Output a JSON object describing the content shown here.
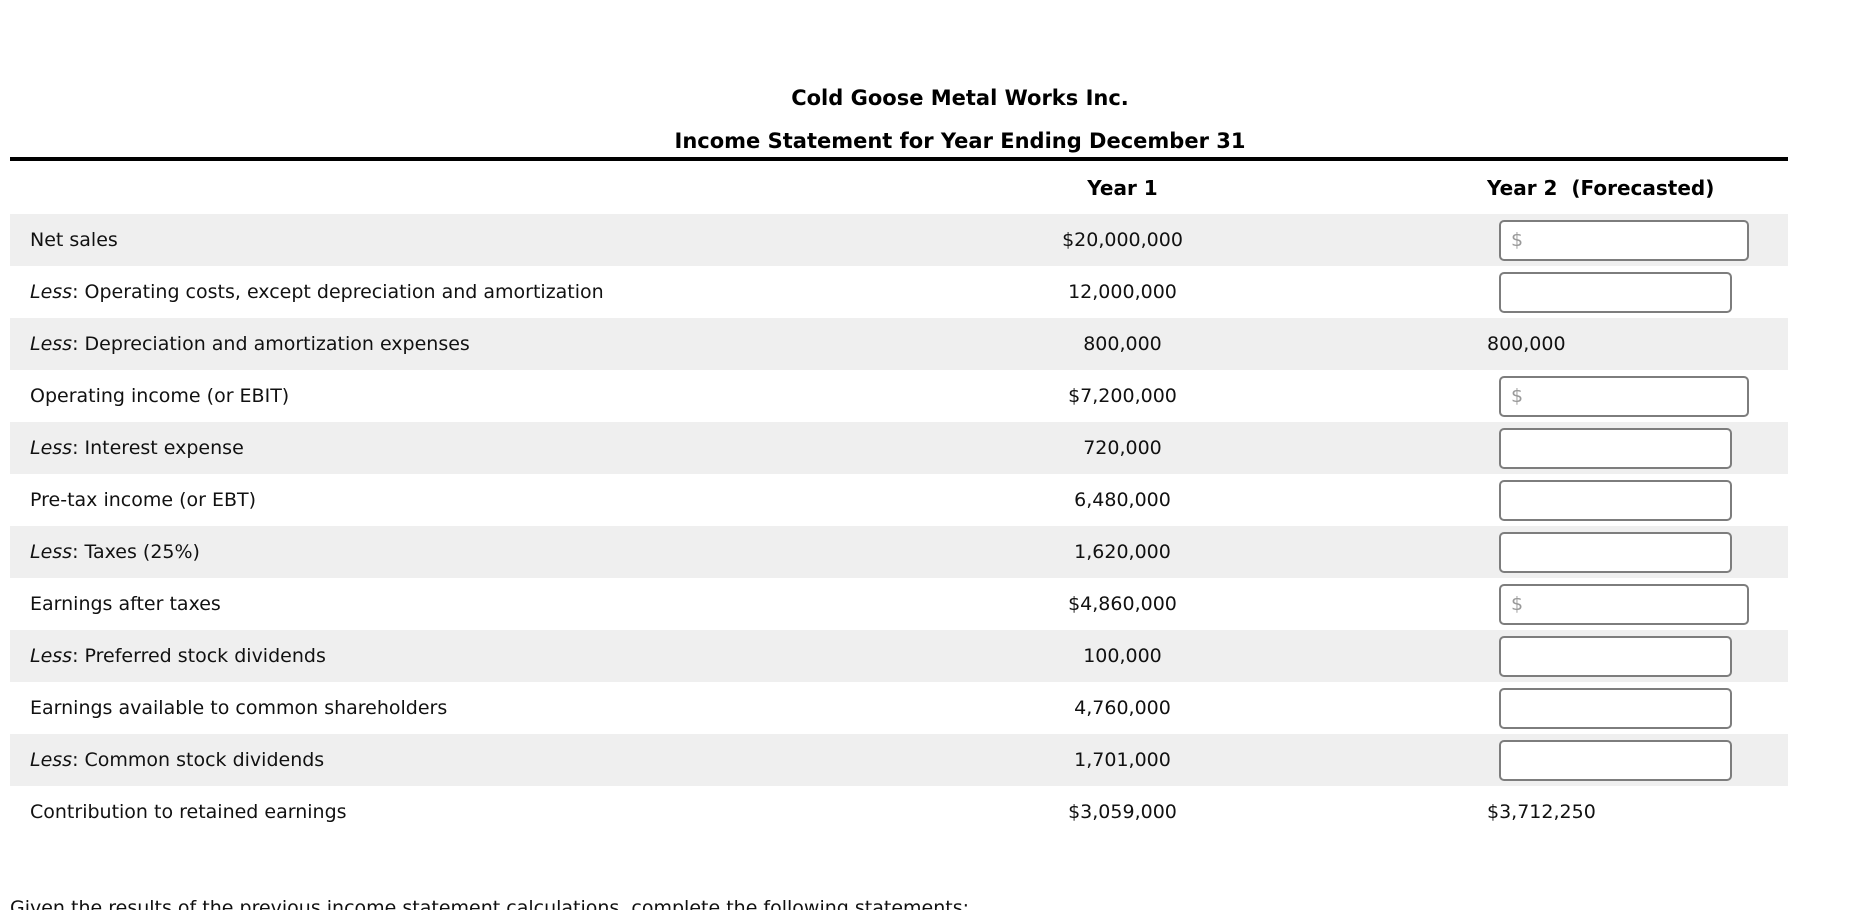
{
  "header": {
    "company": "Cold Goose Metal Works Inc.",
    "statement_title": "Income Statement for Year Ending December 31",
    "col_year1": "Year 1",
    "col_year2": "Year 2  (Forecasted)"
  },
  "table": {
    "rows": [
      {
        "key": "net-sales",
        "less": "",
        "label": "Net sales",
        "year1": "$20,000,000",
        "year2": {
          "kind": "input",
          "placeholder": "$",
          "width": "wide",
          "value": ""
        }
      },
      {
        "key": "operating-costs",
        "less": "Less",
        "label": ": Operating costs, except depreciation and amortization",
        "year1": "12,000,000",
        "year2": {
          "kind": "input",
          "placeholder": "",
          "width": "narrow",
          "value": ""
        }
      },
      {
        "key": "depreciation-amortization",
        "less": "Less",
        "label": ": Depreciation and amortization expenses",
        "year1": "800,000",
        "year2": {
          "kind": "text",
          "value": "800,000"
        }
      },
      {
        "key": "operating-income-ebit",
        "less": "",
        "label": "Operating income (or EBIT)",
        "year1": "$7,200,000",
        "year2": {
          "kind": "input",
          "placeholder": "$",
          "width": "wide",
          "value": ""
        }
      },
      {
        "key": "interest-expense",
        "less": "Less",
        "label": ": Interest expense",
        "year1": "720,000",
        "year2": {
          "kind": "input",
          "placeholder": "",
          "width": "narrow",
          "value": ""
        }
      },
      {
        "key": "pretax-income-ebt",
        "less": "",
        "label": "Pre-tax income (or EBT)",
        "year1": "6,480,000",
        "year2": {
          "kind": "input",
          "placeholder": "",
          "width": "narrow",
          "value": ""
        }
      },
      {
        "key": "taxes",
        "less": "Less",
        "label": ": Taxes (25%)",
        "year1": "1,620,000",
        "year2": {
          "kind": "input",
          "placeholder": "",
          "width": "narrow",
          "value": ""
        }
      },
      {
        "key": "earnings-after-taxes",
        "less": "",
        "label": "Earnings after taxes",
        "year1": "$4,860,000",
        "year2": {
          "kind": "input",
          "placeholder": "$",
          "width": "wide",
          "value": ""
        }
      },
      {
        "key": "preferred-stock-dividends",
        "less": "Less",
        "label": ": Preferred stock dividends",
        "year1": "100,000",
        "year2": {
          "kind": "input",
          "placeholder": "",
          "width": "narrow",
          "value": ""
        }
      },
      {
        "key": "earnings-available-common",
        "less": "",
        "label": "Earnings available to common shareholders",
        "year1": "4,760,000",
        "year2": {
          "kind": "input",
          "placeholder": "",
          "width": "narrow",
          "value": ""
        }
      },
      {
        "key": "common-stock-dividends",
        "less": "Less",
        "label": ": Common stock dividends",
        "year1": "1,701,000",
        "year2": {
          "kind": "input",
          "placeholder": "",
          "width": "narrow",
          "value": ""
        }
      },
      {
        "key": "retained-earnings-contribution",
        "less": "",
        "label": "Contribution to retained earnings",
        "year1": "$3,059,000",
        "year2": {
          "kind": "text",
          "value": "$3,712,250"
        }
      }
    ]
  },
  "footer": {
    "prompt": "Given the results of the previous income statement calculations, complete the following statements:"
  },
  "colors": {
    "row_stripe": "#efefef",
    "header_rule": "#000000",
    "input_border": "#7d7d7d",
    "input_placeholder": "#999999",
    "text": "#111111"
  }
}
